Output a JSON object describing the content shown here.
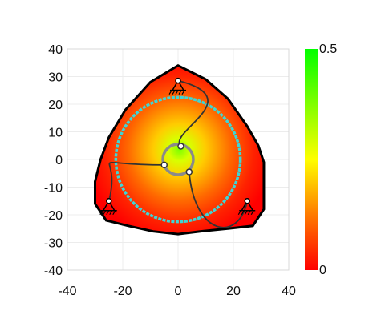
{
  "chart_data": {
    "type": "heatmap",
    "title": "",
    "xlabel": "",
    "ylabel": "",
    "xlim": [
      -40,
      40
    ],
    "ylim": [
      -40,
      40
    ],
    "grid": true,
    "xticks": [
      "-40",
      "-20",
      "0",
      "20",
      "40"
    ],
    "yticks": [
      "40",
      "30",
      "20",
      "10",
      "0",
      "-10",
      "-20",
      "-30",
      "-40"
    ],
    "colorbar": {
      "min": 0,
      "max": 0.5,
      "min_label": "0",
      "max_label": "0.5",
      "colors": [
        "#ff0000",
        "#ff7a00",
        "#ffff00",
        "#80ff00",
        "#00ff00"
      ]
    },
    "workspace_boundary": [
      [
        0,
        34
      ],
      [
        10,
        29
      ],
      [
        18,
        22
      ],
      [
        25,
        12
      ],
      [
        29,
        5
      ],
      [
        31,
        -1
      ],
      [
        31,
        -9
      ],
      [
        31,
        -18
      ],
      [
        27,
        -24
      ],
      [
        18,
        -25
      ],
      [
        8,
        -26
      ],
      [
        0,
        -27
      ],
      [
        -9,
        -26
      ],
      [
        -18,
        -24
      ],
      [
        -26,
        -22
      ],
      [
        -30,
        -16
      ],
      [
        -30,
        -8
      ],
      [
        -28,
        0
      ],
      [
        -25,
        8
      ],
      [
        -19,
        18
      ],
      [
        -10,
        28
      ]
    ],
    "base_pivots": [
      [
        0,
        28.5
      ],
      [
        -25,
        -15
      ],
      [
        25,
        -15
      ]
    ],
    "moving_platform": {
      "center": [
        0,
        0
      ],
      "radius": 5.5,
      "joints": [
        [
          1,
          4.8
        ],
        [
          -5,
          -2
        ],
        [
          4,
          -4.5
        ]
      ]
    },
    "inner_circle_radius": 22.5,
    "colors": {
      "boundary": "#000000",
      "inner_circle": "#3ed6d6",
      "links": "#333333",
      "platform": "#8a8a8a"
    }
  }
}
